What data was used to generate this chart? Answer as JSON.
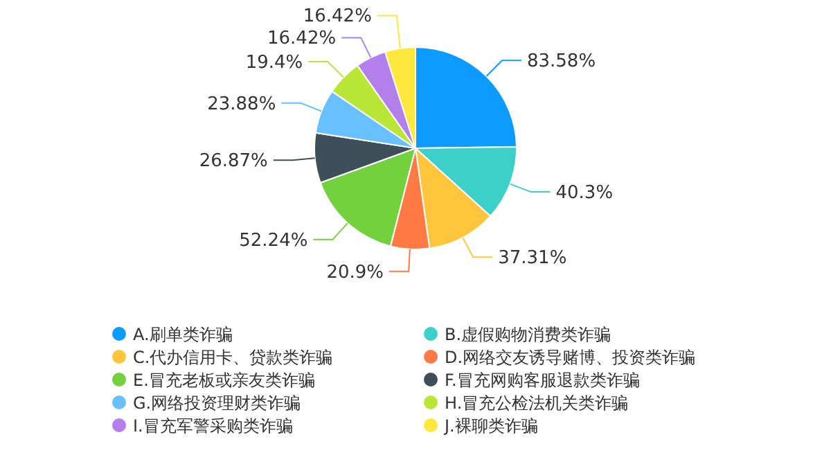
{
  "chart_data": {
    "type": "pie",
    "legend": "bottom",
    "categories": [
      "A.刷单类诈骗",
      "B.虚假购物消费类诈骗",
      "C.代办信用卡、贷款类诈骗",
      "D.网络交友诱导赌博、投资类诈骗",
      "E.冒充老板或亲友类诈骗",
      "F.冒充网购客服退款类诈骗",
      "G.网络投资理财类诈骗",
      "H.冒充公检法机关类诈骗",
      "I.冒充军警采购类诈骗",
      "J.裸聊类诈骗"
    ],
    "values": [
      83.58,
      40.3,
      37.31,
      20.9,
      52.24,
      26.87,
      23.88,
      19.4,
      16.42,
      16.42
    ],
    "value_labels": [
      "83.58%",
      "40.3%",
      "37.31%",
      "20.9%",
      "52.24%",
      "26.87%",
      "23.88%",
      "19.4%",
      "16.42%",
      "16.42%"
    ],
    "colors": [
      "#0e9bff",
      "#3dd0c8",
      "#ffc53d",
      "#ff7a45",
      "#73d13d",
      "#3f4f5a",
      "#69c0ff",
      "#bae637",
      "#b37feb",
      "#ffe83d"
    ]
  }
}
